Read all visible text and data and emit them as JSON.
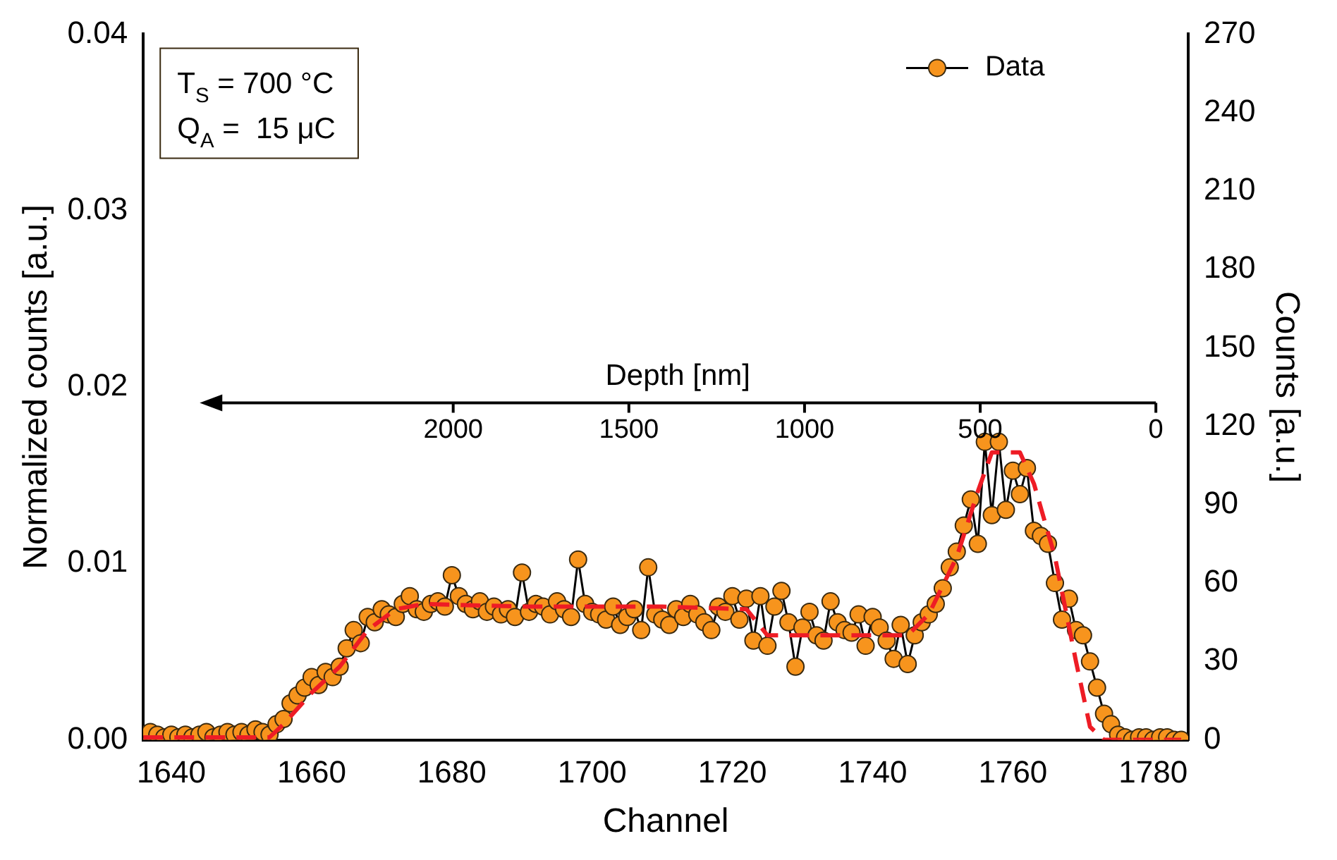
{
  "chart_data": {
    "type": "line",
    "xlabel": "Channel",
    "ylabel": "Normalized counts [a.u.]",
    "y2label": "Counts [a.u.]",
    "x2label": "Depth [nm]",
    "xlim": [
      1636,
      1785
    ],
    "xticks": [
      1640,
      1660,
      1680,
      1700,
      1720,
      1740,
      1760,
      1780
    ],
    "ylim": [
      0,
      0.04
    ],
    "yticks": [
      {
        "value": 0,
        "label": "0.00"
      },
      {
        "value": 0.01,
        "label": "0.01"
      },
      {
        "value": 0.02,
        "label": "0.02"
      },
      {
        "value": 0.03,
        "label": "0.03"
      },
      {
        "value": 0.04,
        "label": "0.04"
      }
    ],
    "y2lim": [
      0,
      270
    ],
    "y2ticks": [
      0,
      30,
      60,
      90,
      120,
      150,
      180,
      210,
      240,
      270
    ],
    "x2lim": [
      2882,
      -92
    ],
    "x2ticks": [
      0,
      500,
      1000,
      1500,
      2000
    ],
    "legend": "top right",
    "grid": false,
    "annotations": [
      "T$_{S}$ = 700 °C",
      "Q$_{A}$ =  15 μC"
    ],
    "series": [
      {
        "name": "Data",
        "marker": "circle",
        "line_style": "solid",
        "axis": "y2",
        "color": "#f7941d",
        "x": [
          1636,
          1637,
          1638,
          1639,
          1640,
          1641,
          1642,
          1643,
          1644,
          1645,
          1646,
          1647,
          1648,
          1649,
          1650,
          1651,
          1652,
          1653,
          1654,
          1655,
          1656,
          1657,
          1658,
          1659,
          1660,
          1661,
          1662,
          1663,
          1664,
          1665,
          1666,
          1667,
          1668,
          1669,
          1670,
          1671,
          1672,
          1673,
          1674,
          1675,
          1676,
          1677,
          1678,
          1679,
          1680,
          1681,
          1682,
          1683,
          1684,
          1685,
          1686,
          1687,
          1688,
          1689,
          1690,
          1691,
          1692,
          1693,
          1694,
          1695,
          1696,
          1697,
          1698,
          1699,
          1700,
          1701,
          1702,
          1703,
          1704,
          1705,
          1706,
          1707,
          1708,
          1709,
          1710,
          1711,
          1712,
          1713,
          1714,
          1715,
          1716,
          1717,
          1718,
          1719,
          1720,
          1721,
          1722,
          1723,
          1724,
          1725,
          1726,
          1727,
          1728,
          1729,
          1730,
          1731,
          1732,
          1733,
          1734,
          1735,
          1736,
          1737,
          1738,
          1739,
          1740,
          1741,
          1742,
          1743,
          1744,
          1745,
          1746,
          1747,
          1748,
          1749,
          1750,
          1751,
          1752,
          1753,
          1754,
          1755,
          1756,
          1757,
          1758,
          1759,
          1760,
          1761,
          1762,
          1763,
          1764,
          1765,
          1766,
          1767,
          1768,
          1769,
          1770,
          1771,
          1772,
          1773,
          1774,
          1775,
          1776,
          1777,
          1778,
          1779,
          1780,
          1781,
          1782,
          1783,
          1784
        ],
        "values": [
          2,
          3,
          2,
          1,
          2,
          1,
          2,
          1,
          2,
          3,
          1,
          2,
          3,
          2,
          3,
          2,
          4,
          3,
          2,
          6,
          8,
          14,
          17,
          20,
          24,
          21,
          26,
          24,
          28,
          35,
          42,
          37,
          47,
          45,
          50,
          48,
          47,
          52,
          55,
          50,
          49,
          52,
          53,
          51,
          63,
          55,
          52,
          50,
          53,
          49,
          51,
          48,
          50,
          47,
          64,
          49,
          52,
          51,
          48,
          53,
          50,
          47,
          69,
          52,
          49,
          48,
          46,
          51,
          44,
          47,
          50,
          42,
          66,
          48,
          46,
          44,
          50,
          47,
          52,
          48,
          45,
          42,
          51,
          49,
          55,
          46,
          54,
          38,
          55,
          36,
          51,
          57,
          45,
          28,
          43,
          49,
          40,
          38,
          53,
          45,
          42,
          41,
          48,
          36,
          47,
          43,
          38,
          31,
          44,
          29,
          40,
          45,
          48,
          52,
          58,
          66,
          72,
          82,
          92,
          75,
          114,
          86,
          114,
          88,
          103,
          94,
          104,
          80,
          78,
          75,
          60,
          46,
          54,
          42,
          40,
          30,
          20,
          10,
          6,
          2,
          1,
          0,
          1,
          1,
          0,
          1,
          1,
          0,
          0
        ]
      },
      {
        "marker": "none",
        "line_style": "dashed",
        "axis": "y2",
        "color": "#ee1c25",
        "x": [
          1636,
          1654,
          1656,
          1660,
          1664,
          1668,
          1672,
          1676,
          1690,
          1710,
          1722,
          1725,
          1745,
          1748,
          1752,
          1755,
          1757,
          1761,
          1763,
          1766,
          1769,
          1771,
          1773,
          1784
        ],
        "values": [
          1,
          1,
          6,
          18,
          28,
          42,
          50,
          52,
          51,
          51,
          50,
          40,
          40,
          48,
          70,
          95,
          110,
          110,
          98,
          70,
          30,
          5,
          0,
          0
        ]
      }
    ]
  }
}
